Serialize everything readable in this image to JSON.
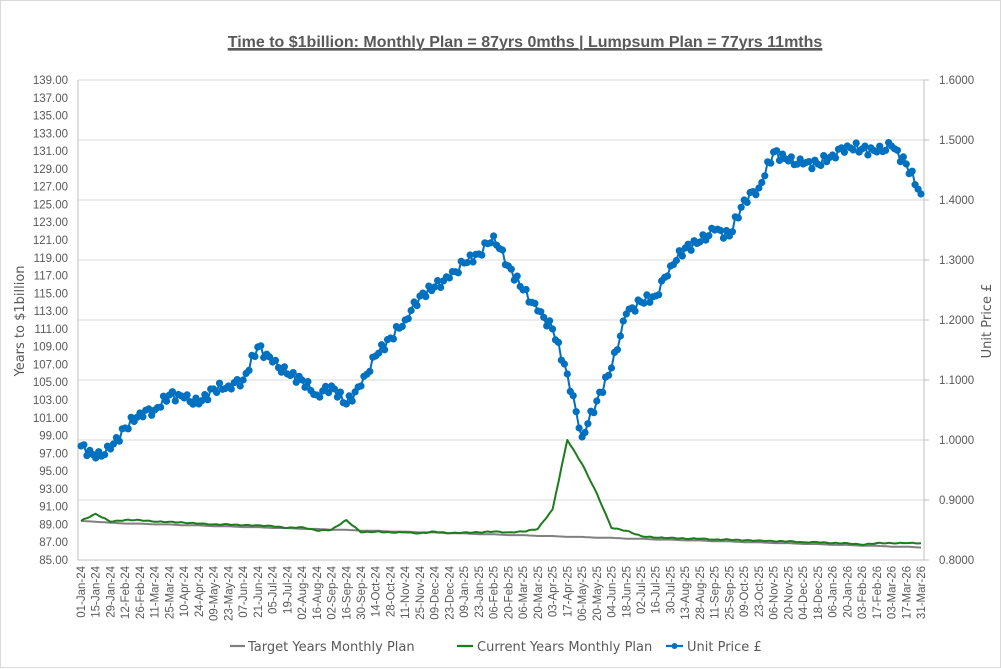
{
  "chart_data": {
    "type": "line",
    "title": "Time to $1billion: Monthly Plan = 87yrs 0mths | Lumpsum Plan = 77yrs 11mths",
    "xlabel": "",
    "ylabel": "Years to $1billion",
    "y2label": "Unit Price £",
    "ylim": [
      85,
      139
    ],
    "y2lim": [
      0.8,
      1.6
    ],
    "grid": true,
    "legend_position": "bottom",
    "y_ticks": [
      "139.00",
      "137.00",
      "135.00",
      "133.00",
      "131.00",
      "129.00",
      "127.00",
      "125.00",
      "123.00",
      "121.00",
      "119.00",
      "117.00",
      "115.00",
      "113.00",
      "111.00",
      "109.00",
      "107.00",
      "105.00",
      "103.00",
      "101.00",
      "99.00",
      "97.00",
      "95.00",
      "93.00",
      "91.00",
      "89.00",
      "87.00",
      "85.00"
    ],
    "y2_ticks": [
      "1.6000",
      "1.5000",
      "1.4000",
      "1.3000",
      "1.2000",
      "1.1000",
      "1.0000",
      "0.9000",
      "0.8000"
    ],
    "x_ticks": [
      "01-Jan-24",
      "15-Jan-24",
      "29-Jan-24",
      "12-Feb-24",
      "26-Feb-24",
      "11-Mar-24",
      "25-Mar-24",
      "10-Apr-24",
      "24-Apr-24",
      "09-May-24",
      "23-May-24",
      "07-Jun-24",
      "21-Jun-24",
      "05-Jul-24",
      "19-Jul-24",
      "02-Aug-24",
      "16-Aug-24",
      "02-Sep-24",
      "16-Sep-24",
      "30-Sep-24",
      "14-Oct-24",
      "28-Oct-24",
      "11-Nov-24",
      "25-Nov-24",
      "09-Dec-24",
      "23-Dec-24",
      "09-Jan-25",
      "23-Jan-25",
      "06-Feb-25",
      "20-Feb-25",
      "06-Mar-25",
      "20-Mar-25",
      "03-Apr-25",
      "17-Apr-25",
      "06-May-25",
      "20-May-25",
      "04-Jun-25",
      "18-Jun-25",
      "02-Jul-25",
      "16-Jul-25",
      "30-Jul-25",
      "13-Aug-25",
      "28-Aug-25",
      "11-Sep-25",
      "25-Sep-25",
      "09-Oct-25",
      "23-Oct-25",
      "06-Nov-25",
      "20-Nov-25",
      "04-Dec-25",
      "18-Dec-25",
      "06-Jan-26",
      "20-Jan-26",
      "03-Feb-26",
      "17-Feb-26",
      "03-Mar-26",
      "17-Mar-26",
      "31-Mar-26"
    ],
    "series": [
      {
        "name": "Target Years Monthly Plan",
        "axis": "left",
        "color": "#808080",
        "values": [
          89.4,
          89.3,
          89.2,
          89.1,
          89.1,
          89.0,
          89.0,
          88.9,
          88.9,
          88.8,
          88.8,
          88.7,
          88.7,
          88.6,
          88.6,
          88.5,
          88.5,
          88.4,
          88.4,
          88.3,
          88.3,
          88.2,
          88.2,
          88.1,
          88.1,
          88.0,
          88.0,
          87.9,
          87.9,
          87.8,
          87.8,
          87.7,
          87.7,
          87.6,
          87.6,
          87.5,
          87.5,
          87.4,
          87.4,
          87.3,
          87.3,
          87.2,
          87.2,
          87.1,
          87.1,
          87.0,
          87.0,
          86.9,
          86.9,
          86.8,
          86.8,
          86.7,
          86.7,
          86.6,
          86.6,
          86.5,
          86.5,
          86.4
        ]
      },
      {
        "name": "Current Years Monthly Plan",
        "axis": "left",
        "color": "#1e7b1e",
        "values": [
          89.4,
          90.2,
          89.3,
          89.5,
          89.5,
          89.3,
          89.3,
          89.2,
          89.1,
          89.0,
          89.0,
          88.9,
          88.9,
          88.8,
          88.6,
          88.7,
          88.3,
          88.4,
          89.5,
          88.1,
          88.2,
          88.1,
          88.1,
          88.0,
          88.2,
          88.0,
          88.1,
          88.1,
          88.2,
          88.1,
          88.2,
          88.5,
          90.7,
          98.5,
          95.8,
          92.5,
          88.6,
          88.3,
          87.7,
          87.5,
          87.5,
          87.4,
          87.4,
          87.3,
          87.3,
          87.2,
          87.2,
          87.1,
          87.1,
          87.0,
          87.0,
          86.9,
          86.9,
          86.7,
          86.9,
          86.9,
          86.9,
          86.9
        ]
      },
      {
        "name": "Unit Price £",
        "axis": "right",
        "color": "#0070c0",
        "marker": "circle",
        "values": [
          0.99,
          0.97,
          0.985,
          1.02,
          1.045,
          1.05,
          1.075,
          1.07,
          1.06,
          1.085,
          1.09,
          1.1,
          1.155,
          1.13,
          1.11,
          1.1,
          1.075,
          1.09,
          1.06,
          1.09,
          1.14,
          1.17,
          1.2,
          1.24,
          1.255,
          1.27,
          1.295,
          1.31,
          1.34,
          1.29,
          1.25,
          1.215,
          1.185,
          1.11,
          1.005,
          1.065,
          1.12,
          1.21,
          1.23,
          1.24,
          1.29,
          1.32,
          1.33,
          1.35,
          1.34,
          1.4,
          1.42,
          1.48,
          1.465,
          1.46,
          1.46,
          1.475,
          1.49,
          1.485,
          1.48,
          1.49,
          1.46,
          1.41
        ]
      }
    ]
  },
  "legend": {
    "items": [
      {
        "label": "Target Years Monthly Plan",
        "color": "#808080",
        "marker": "none"
      },
      {
        "label": "Current Years Monthly Plan",
        "color": "#1e7b1e",
        "marker": "none"
      },
      {
        "label": "Unit Price £",
        "color": "#0070c0",
        "marker": "circle"
      }
    ]
  }
}
